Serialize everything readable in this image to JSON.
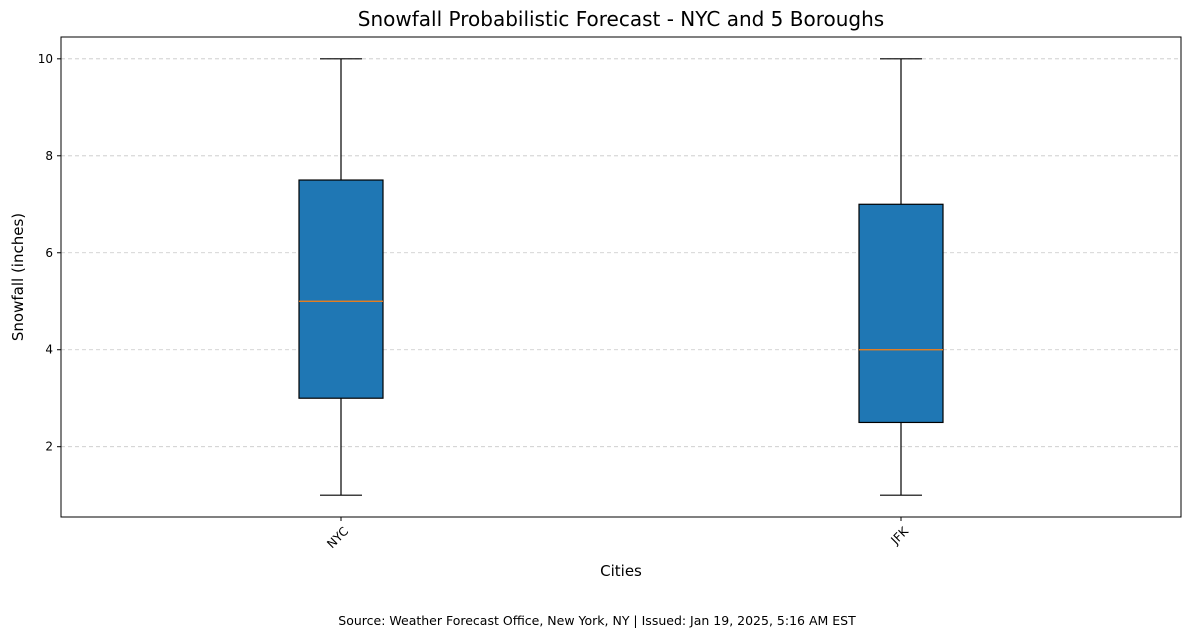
{
  "chart_data": {
    "type": "box",
    "title": "Snowfall Probabilistic Forecast - NYC and 5 Boroughs",
    "xlabel": "Cities",
    "ylabel": "Snowfall (inches)",
    "categories": [
      "NYC",
      "JFK"
    ],
    "boxes": [
      {
        "category": "NYC",
        "min": 1,
        "q1": 3,
        "median": 5,
        "q3": 7.5,
        "max": 10
      },
      {
        "category": "JFK",
        "min": 1,
        "q1": 2.5,
        "median": 4,
        "q3": 7,
        "max": 10
      }
    ],
    "ylim": [
      0.55,
      10.45
    ],
    "yticks": [
      2,
      4,
      6,
      8,
      10
    ],
    "x_tick_rotation": 45,
    "grid": {
      "y": true,
      "x": false,
      "style": "dashed"
    },
    "colors": {
      "box_fill": "#1f77b4",
      "median": "#ff7f0e",
      "outline": "#000000",
      "grid": "#c8c8c8"
    }
  },
  "footer": {
    "source": "Source: Weather Forecast Office, New York, NY | Issued: Jan 19, 2025, 5:16 AM EST"
  }
}
